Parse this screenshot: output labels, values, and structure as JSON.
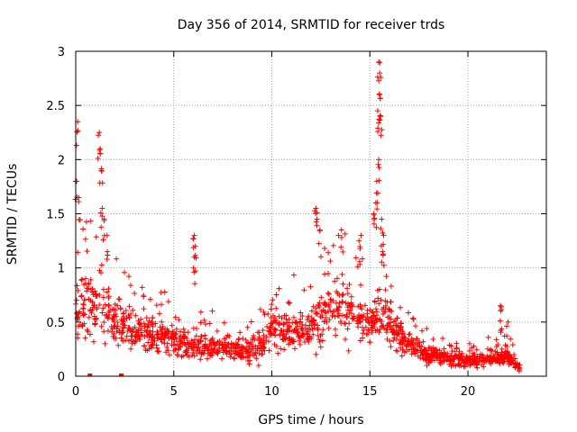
{
  "chart_data": {
    "type": "scatter",
    "title": "Day 356 of 2014, SRMTID for receiver trds",
    "xlabel": "GPS time / hours",
    "ylabel": "SRMTID / TECUs",
    "xlim": [
      0,
      24
    ],
    "ylim": [
      0,
      3
    ],
    "xticks": [
      0,
      5,
      10,
      15,
      20
    ],
    "yticks": [
      0,
      0.5,
      1,
      1.5,
      2,
      2.5,
      3
    ],
    "xtick_labels": [
      "0",
      "5",
      "10",
      "15",
      "20"
    ],
    "ytick_labels": [
      "0",
      "0.5",
      "1",
      "1.5",
      "2",
      "2.5",
      "3"
    ],
    "grid": true,
    "marker": "plus",
    "color": "#ff0000",
    "profile": [
      [
        0.0,
        0.6
      ],
      [
        0.5,
        0.7
      ],
      [
        1.0,
        0.65
      ],
      [
        1.5,
        0.6
      ],
      [
        2.0,
        0.5
      ],
      [
        2.5,
        0.45
      ],
      [
        3.0,
        0.42
      ],
      [
        3.5,
        0.4
      ],
      [
        4.0,
        0.38
      ],
      [
        4.5,
        0.35
      ],
      [
        5.0,
        0.33
      ],
      [
        5.5,
        0.3
      ],
      [
        6.0,
        0.28
      ],
      [
        7.0,
        0.26
      ],
      [
        8.0,
        0.25
      ],
      [
        9.0,
        0.24
      ],
      [
        9.5,
        0.3
      ],
      [
        10.0,
        0.45
      ],
      [
        10.5,
        0.42
      ],
      [
        11.0,
        0.4
      ],
      [
        11.5,
        0.42
      ],
      [
        12.0,
        0.45
      ],
      [
        12.5,
        0.55
      ],
      [
        13.0,
        0.6
      ],
      [
        13.5,
        0.65
      ],
      [
        14.0,
        0.6
      ],
      [
        14.5,
        0.5
      ],
      [
        15.0,
        0.5
      ],
      [
        15.5,
        0.6
      ],
      [
        16.0,
        0.5
      ],
      [
        16.5,
        0.38
      ],
      [
        17.0,
        0.3
      ],
      [
        17.5,
        0.25
      ],
      [
        18.0,
        0.2
      ],
      [
        18.5,
        0.18
      ],
      [
        19.0,
        0.16
      ],
      [
        20.0,
        0.14
      ],
      [
        21.0,
        0.15
      ],
      [
        22.0,
        0.18
      ],
      [
        22.7,
        0.08
      ]
    ],
    "peaks": [
      {
        "x": 0.1,
        "y": 2.35
      },
      {
        "x": 0.05,
        "y": 1.8
      },
      {
        "x": 0.15,
        "y": 1.65
      },
      {
        "x": 1.2,
        "y": 2.25
      },
      {
        "x": 1.25,
        "y": 2.1
      },
      {
        "x": 1.3,
        "y": 1.9
      },
      {
        "x": 1.35,
        "y": 1.55
      },
      {
        "x": 1.45,
        "y": 1.45
      },
      {
        "x": 1.6,
        "y": 1.3
      },
      {
        "x": 6.05,
        "y": 1.3
      },
      {
        "x": 6.1,
        "y": 1.2
      },
      {
        "x": 6.05,
        "y": 1.1
      },
      {
        "x": 12.25,
        "y": 1.55
      },
      {
        "x": 12.3,
        "y": 1.45
      },
      {
        "x": 12.45,
        "y": 1.35
      },
      {
        "x": 13.55,
        "y": 1.35
      },
      {
        "x": 14.55,
        "y": 1.3
      },
      {
        "x": 14.45,
        "y": 1.25
      },
      {
        "x": 15.45,
        "y": 2.9
      },
      {
        "x": 15.5,
        "y": 2.8
      },
      {
        "x": 15.5,
        "y": 2.6
      },
      {
        "x": 15.4,
        "y": 2.45
      },
      {
        "x": 15.55,
        "y": 2.4
      },
      {
        "x": 15.45,
        "y": 2.0
      },
      {
        "x": 15.35,
        "y": 1.8
      },
      {
        "x": 15.3,
        "y": 1.6
      },
      {
        "x": 15.6,
        "y": 1.45
      },
      {
        "x": 15.2,
        "y": 1.5
      },
      {
        "x": 15.7,
        "y": 1.3
      },
      {
        "x": 15.65,
        "y": 1.15
      },
      {
        "x": 21.65,
        "y": 0.65
      },
      {
        "x": 21.7,
        "y": 0.64
      },
      {
        "x": 22.05,
        "y": 0.5
      }
    ],
    "zero_markers": [
      0.7,
      2.3
    ],
    "point_count": 1500
  }
}
